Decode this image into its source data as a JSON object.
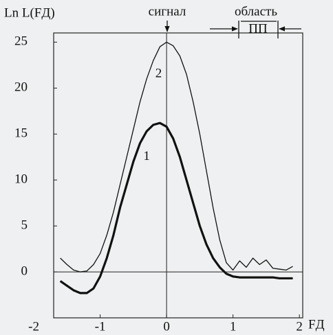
{
  "chart_data": {
    "type": "line",
    "y_label": "Ln L(FД)",
    "x_label": "FД",
    "annotations": {
      "signal": "сигнал",
      "region": "область",
      "region_short": "ПП"
    },
    "x": [
      -1.6,
      -1.5,
      -1.4,
      -1.3,
      -1.2,
      -1.1,
      -1.0,
      -0.9,
      -0.8,
      -0.7,
      -0.6,
      -0.5,
      -0.4,
      -0.3,
      -0.2,
      -0.1,
      0,
      0.1,
      0.2,
      0.3,
      0.4,
      0.5,
      0.6,
      0.7,
      0.8,
      0.9,
      1.0,
      1.1,
      1.2,
      1.3,
      1.4,
      1.5,
      1.6,
      1.7,
      1.8,
      1.9
    ],
    "series": [
      {
        "name": "1",
        "color": "#111111",
        "values": [
          -1,
          -1.5,
          -2,
          -2.3,
          -2.3,
          -1.8,
          -0.5,
          1.5,
          4,
          7,
          9.5,
          12,
          14,
          15.3,
          16,
          16.2,
          15.8,
          14.5,
          12.5,
          10,
          7.5,
          5,
          3,
          1.5,
          0.5,
          -0.2,
          -0.5,
          -0.6,
          -0.6,
          -0.6,
          -0.6,
          -0.6,
          -0.6,
          -0.7,
          -0.7,
          -0.7
        ]
      },
      {
        "name": "2",
        "color": "#111111",
        "values": [
          1.5,
          0.8,
          0.2,
          0,
          0.1,
          0.8,
          2,
          4,
          6.5,
          9.5,
          12.5,
          15.5,
          18.5,
          21,
          23,
          24.5,
          25,
          24.6,
          23.5,
          21.5,
          18.5,
          15,
          11,
          7,
          3.5,
          1,
          0.2,
          1.2,
          0.5,
          1.5,
          0.8,
          1.3,
          0.4,
          0.3,
          0.2,
          0.6
        ]
      }
    ],
    "xlim": [
      -1.7,
      2.05
    ],
    "ylim": [
      -5,
      26
    ],
    "xticks": [
      -2,
      -1,
      0,
      1,
      2
    ],
    "yticks": [
      0,
      5,
      10,
      15,
      20,
      25
    ]
  }
}
